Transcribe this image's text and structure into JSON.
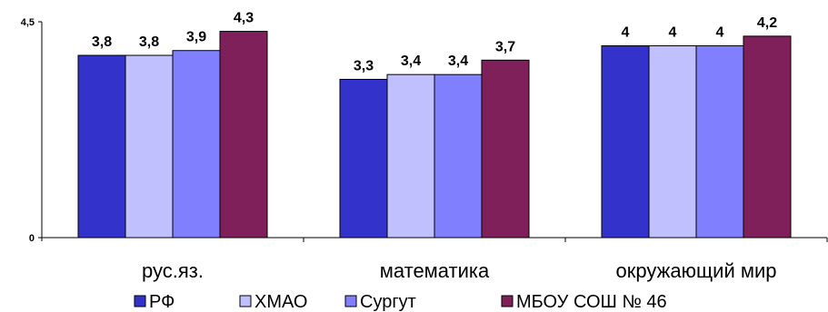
{
  "chart_data": {
    "type": "bar",
    "categories": [
      "рус.яз.",
      "математика",
      "окружающий мир"
    ],
    "series": [
      {
        "name": "РФ",
        "color": "#3333cc",
        "values": [
          3.8,
          3.3,
          4
        ]
      },
      {
        "name": "ХМАО",
        "color": "#c0c0ff",
        "values": [
          3.8,
          3.4,
          4
        ]
      },
      {
        "name": "Сургут",
        "color": "#8080ff",
        "values": [
          3.9,
          3.4,
          4
        ]
      },
      {
        "name": "МБОУ СОШ № 46",
        "color": "#80205a",
        "values": [
          4.3,
          3.7,
          4.2
        ]
      }
    ],
    "data_labels": [
      [
        "3,8",
        "3,3",
        "4"
      ],
      [
        "3,8",
        "3,4",
        "4"
      ],
      [
        "3,9",
        "3,4",
        "4"
      ],
      [
        "4,3",
        "3,7",
        "4,2"
      ]
    ],
    "yticks": [
      "0",
      "4,5"
    ],
    "ylim": [
      0,
      4.5
    ],
    "legend_position": "bottom",
    "grid": false
  }
}
